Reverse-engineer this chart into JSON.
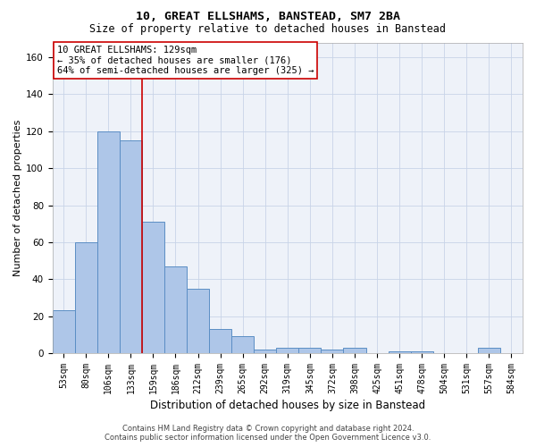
{
  "title1": "10, GREAT ELLSHAMS, BANSTEAD, SM7 2BA",
  "title2": "Size of property relative to detached houses in Banstead",
  "xlabel": "Distribution of detached houses by size in Banstead",
  "ylabel": "Number of detached properties",
  "bar_labels": [
    "53sqm",
    "80sqm",
    "106sqm",
    "133sqm",
    "159sqm",
    "186sqm",
    "212sqm",
    "239sqm",
    "265sqm",
    "292sqm",
    "319sqm",
    "345sqm",
    "372sqm",
    "398sqm",
    "425sqm",
    "451sqm",
    "478sqm",
    "504sqm",
    "531sqm",
    "557sqm",
    "584sqm"
  ],
  "bar_values": [
    23,
    60,
    120,
    115,
    71,
    47,
    35,
    13,
    9,
    2,
    3,
    3,
    2,
    3,
    0,
    1,
    1,
    0,
    0,
    3,
    0
  ],
  "bar_color": "#aec6e8",
  "bar_edge_color": "#5b8ec4",
  "vline_x": 3.5,
  "vline_color": "#cc0000",
  "ylim": [
    0,
    168
  ],
  "yticks": [
    0,
    20,
    40,
    60,
    80,
    100,
    120,
    140,
    160
  ],
  "annotation_line1": "10 GREAT ELLSHAMS: 129sqm",
  "annotation_line2": "← 35% of detached houses are smaller (176)",
  "annotation_line3": "64% of semi-detached houses are larger (325) →",
  "footer1": "Contains HM Land Registry data © Crown copyright and database right 2024.",
  "footer2": "Contains public sector information licensed under the Open Government Licence v3.0.",
  "bg_color": "#eef2f9",
  "grid_color": "#c8d4e8",
  "title1_fontsize": 9.5,
  "title2_fontsize": 8.5,
  "ylabel_fontsize": 8,
  "xlabel_fontsize": 8.5,
  "tick_fontsize": 7,
  "ann_fontsize": 7.5,
  "footer_fontsize": 6
}
